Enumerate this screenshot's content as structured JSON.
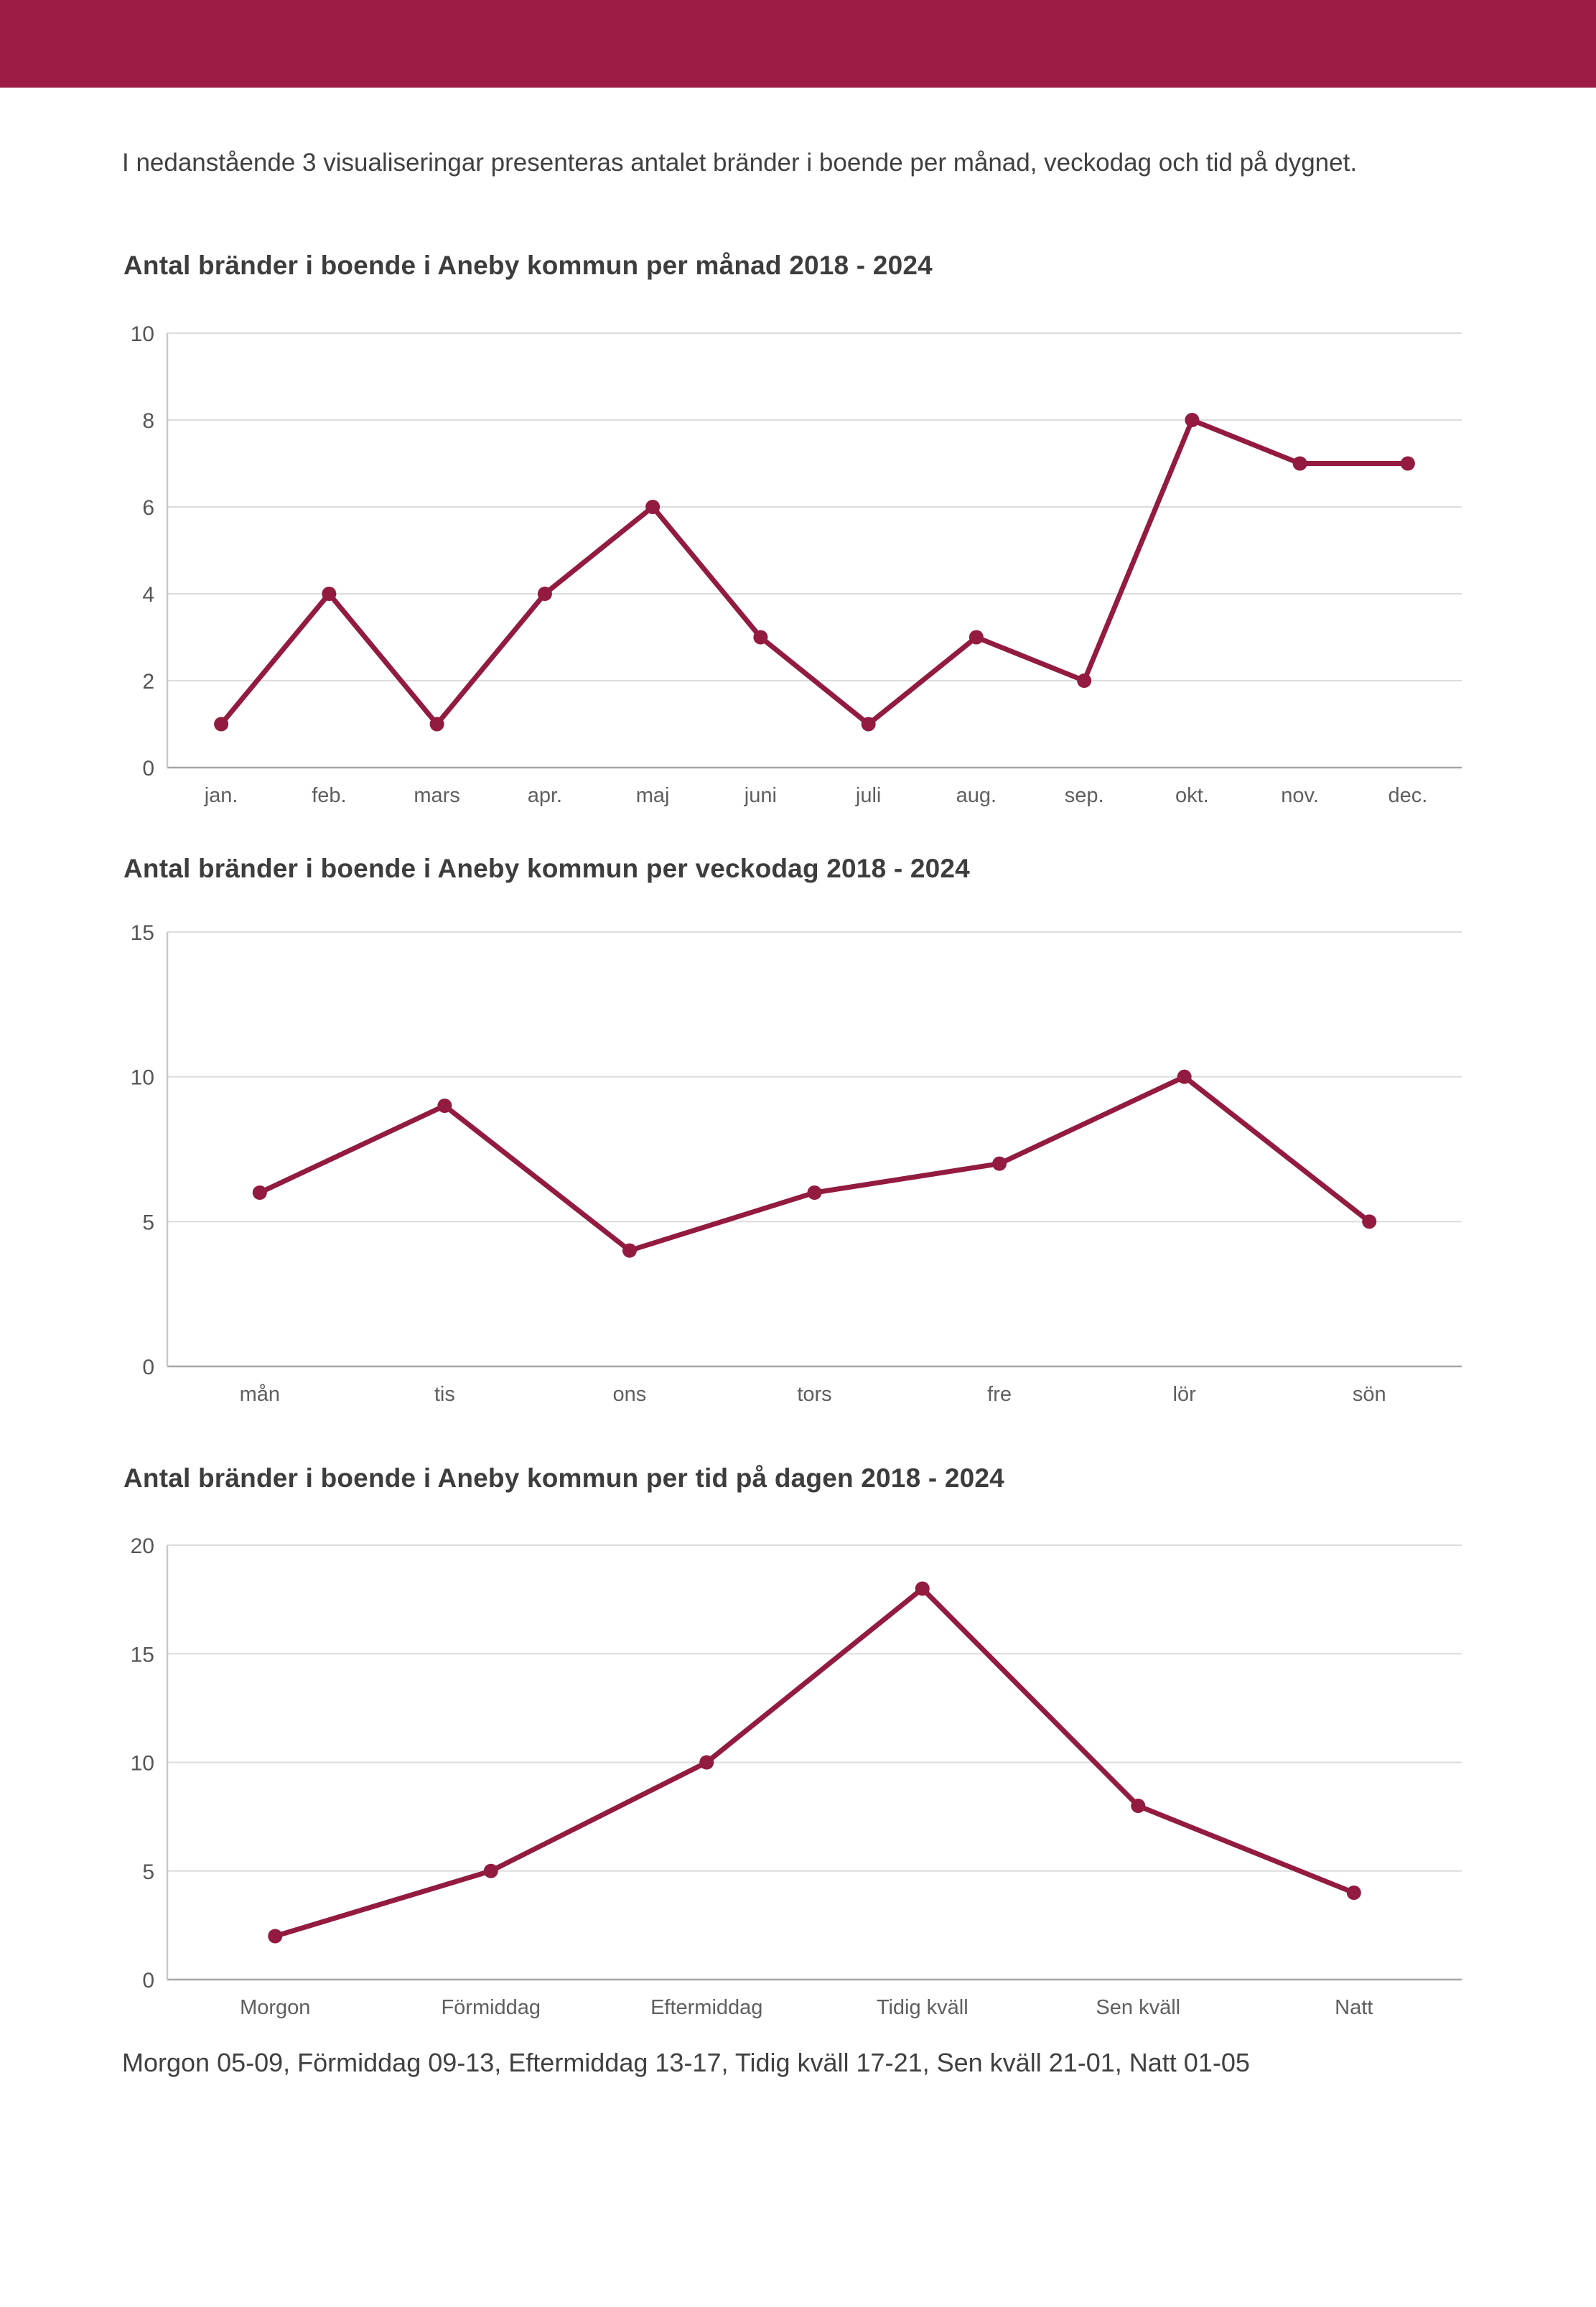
{
  "intro_text": "I nedanstående 3 visualiseringar presenteras antalet bränder i boende per månad, veckodag och tid på dygnet.",
  "footer_text": "Morgon 05-09, Förmiddag 09-13, Eftermiddag 13-17, Tidig kväll 17-21, Sen kväll 21-01, Natt 01-05",
  "colors": {
    "header_bar": "#9b1b42",
    "line": "#931b40",
    "grid": "#dcdcdc",
    "axis": "#c8c8c8",
    "baseline": "#a6a6a6",
    "tick_text": "#555555",
    "category_text": "#5f5f5f",
    "title_text": "#3d3d3d",
    "body_text": "#404040"
  },
  "chart_data": [
    {
      "type": "line",
      "title": "Antal bränder i boende i Aneby kommun per månad 2018 - 2024",
      "categories": [
        "jan.",
        "feb.",
        "mars",
        "apr.",
        "maj",
        "juni",
        "juli",
        "aug.",
        "sep.",
        "okt.",
        "nov.",
        "dec."
      ],
      "values": [
        1,
        4,
        1,
        4,
        6,
        3,
        1,
        3,
        2,
        8,
        7,
        7
      ],
      "xlabel": "",
      "ylabel": "",
      "ylim": [
        0,
        10
      ],
      "yticks": [
        0,
        2,
        4,
        6,
        8,
        10
      ],
      "grid": true,
      "legend": "none"
    },
    {
      "type": "line",
      "title": "Antal bränder i boende i Aneby kommun per veckodag 2018 - 2024",
      "categories": [
        "mån",
        "tis",
        "ons",
        "tors",
        "fre",
        "lör",
        "sön"
      ],
      "values": [
        6,
        9,
        4,
        6,
        7,
        10,
        5
      ],
      "xlabel": "",
      "ylabel": "",
      "ylim": [
        0,
        15
      ],
      "yticks": [
        0,
        5,
        10,
        15
      ],
      "grid": true,
      "legend": "none"
    },
    {
      "type": "line",
      "title": "Antal bränder i boende i Aneby kommun per tid på dagen 2018 - 2024",
      "categories": [
        "Morgon",
        "Förmiddag",
        "Eftermiddag",
        "Tidig kväll",
        "Sen kväll",
        "Natt"
      ],
      "values": [
        2,
        5,
        10,
        18,
        8,
        4
      ],
      "xlabel": "",
      "ylabel": "",
      "ylim": [
        0,
        20
      ],
      "yticks": [
        0,
        5,
        10,
        15,
        20
      ],
      "grid": true,
      "legend": "none"
    }
  ]
}
